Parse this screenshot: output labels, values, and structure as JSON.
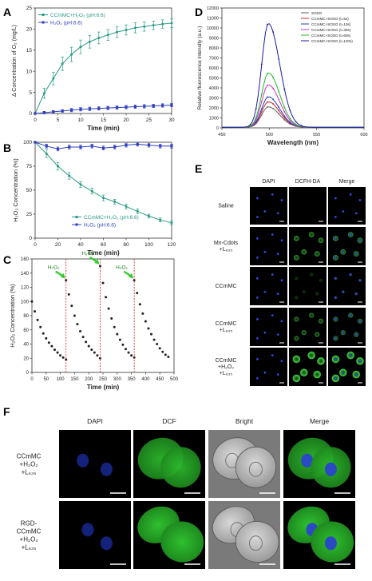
{
  "panel_letters": {
    "a": "A",
    "b": "B",
    "c": "C",
    "d": "D",
    "e": "E",
    "f": "F"
  },
  "colors": {
    "teal": "#2a9a86",
    "blue": "#2f3fbf",
    "black": "#222222",
    "red": "#d32020",
    "green_arrow": "#33cc33"
  },
  "chart_data": [
    {
      "panel": "A",
      "type": "line",
      "xlabel": "Time (min)",
      "ylabel": "Δ Concentration of O₂ (mg/L)",
      "xlim": [
        0,
        30
      ],
      "ylim": [
        0,
        25
      ],
      "xticks": [
        0,
        5,
        10,
        15,
        20,
        25,
        30
      ],
      "yticks": [
        0,
        5,
        10,
        15,
        20,
        25
      ],
      "legend": "top-left",
      "series": [
        {
          "name": "CCmMC+H₂O₂ (pH:6.6)",
          "color": "#2a9a86",
          "x": [
            0,
            2,
            4,
            6,
            8,
            10,
            12,
            14,
            16,
            18,
            20,
            22,
            24,
            26,
            28,
            30
          ],
          "y": [
            0,
            4.8,
            8.3,
            11.8,
            14.0,
            15.8,
            17.0,
            17.9,
            18.6,
            19.3,
            19.8,
            20.3,
            20.6,
            20.9,
            21.2,
            21.4
          ],
          "err": [
            0,
            1.2,
            1.5,
            1.6,
            1.7,
            1.6,
            1.5,
            1.4,
            1.3,
            1.3,
            1.2,
            1.2,
            1.1,
            1.0,
            1.0,
            1.0
          ]
        },
        {
          "name": "H₂O₂ (pH:6.6)",
          "color": "#2f3fbf",
          "x": [
            0,
            2,
            4,
            6,
            8,
            10,
            12,
            14,
            16,
            18,
            20,
            22,
            24,
            26,
            28,
            30
          ],
          "y": [
            0,
            0.2,
            0.4,
            0.6,
            0.8,
            1.0,
            1.1,
            1.2,
            1.3,
            1.4,
            1.5,
            1.6,
            1.7,
            1.8,
            1.9,
            2.0
          ],
          "err": [
            0,
            0.3,
            0.3,
            0.3,
            0.4,
            0.4,
            0.4,
            0.4,
            0.4,
            0.4,
            0.4,
            0.4,
            0.4,
            0.4,
            0.4,
            0.4
          ]
        }
      ]
    },
    {
      "panel": "D",
      "type": "line",
      "xlabel": "Wavelength (nm)",
      "ylabel": "Relative fluorescence intensity (a.u.)",
      "xlim": [
        450,
        600
      ],
      "ylim": [
        0,
        12000
      ],
      "xticks": [
        450,
        500,
        550,
        600
      ],
      "yticks": [
        0,
        1000,
        2000,
        3000,
        4000,
        5000,
        6000,
        7000,
        8000,
        9000,
        10000,
        11000,
        12000
      ],
      "legend": "top-right",
      "peak_nm": 499,
      "series": [
        {
          "name": "SOSG",
          "color": "#666666",
          "peak": 2050
        },
        {
          "name": "CCmMC+SOSG (t=5s)",
          "color": "#d62728",
          "peak": 2550
        },
        {
          "name": "CCmMC+SOSG (t=10s)",
          "color": "#1f3fbf",
          "peak": 3050
        },
        {
          "name": "CCmMC+SOSG (t=30s)",
          "color": "#cc33cc",
          "peak": 4250
        },
        {
          "name": "CCmMC+SOSG (t=60s)",
          "color": "#22bb22",
          "peak": 5450
        },
        {
          "name": "CCmMC+SOSG (t=120s)",
          "color": "#1a1aa0",
          "peak": 10400
        }
      ]
    },
    {
      "panel": "B",
      "type": "line",
      "xlabel": "Time (min)",
      "ylabel": "H₂O₂ Concentration (%)",
      "xlim": [
        0,
        120
      ],
      "ylim": [
        0,
        100
      ],
      "xticks": [
        0,
        20,
        40,
        60,
        80,
        100,
        120
      ],
      "yticks": [
        0,
        25,
        50,
        75,
        100
      ],
      "legend": "bottom-left",
      "series": [
        {
          "name": "CCmMC+H₂O₂ (pH:6.6)",
          "color": "#2a9a86",
          "x": [
            0,
            10,
            20,
            30,
            40,
            50,
            60,
            70,
            80,
            90,
            100,
            110,
            120
          ],
          "y": [
            100,
            88,
            75,
            65,
            56,
            49,
            42,
            38,
            33,
            28,
            23,
            19,
            16
          ],
          "err": [
            0,
            4,
            4,
            3.5,
            3,
            3,
            3,
            2.5,
            2.5,
            2.5,
            2,
            2,
            2
          ]
        },
        {
          "name": "H₂O₂ (pH:6.6)",
          "color": "#2f3fbf",
          "x": [
            0,
            10,
            20,
            30,
            40,
            50,
            60,
            70,
            80,
            90,
            100,
            110,
            120
          ],
          "y": [
            100,
            96,
            93,
            95,
            95,
            96,
            94,
            95,
            97,
            98,
            97,
            96,
            96
          ],
          "err": [
            0,
            2,
            2,
            2,
            2,
            2,
            2,
            2,
            2,
            2,
            2,
            2,
            2
          ]
        }
      ]
    },
    {
      "panel": "C",
      "type": "scatter",
      "xlabel": "Time (min)",
      "ylabel": "H₂O₂ Concentration (%)",
      "xlim": [
        0,
        500
      ],
      "ylim": [
        0,
        160
      ],
      "xticks": [
        0,
        50,
        100,
        150,
        200,
        250,
        300,
        350,
        400,
        450,
        500
      ],
      "yticks": [
        0,
        20,
        40,
        60,
        80,
        100,
        120,
        140,
        160
      ],
      "additions": [
        {
          "x": 120,
          "label": "H₂O₂"
        },
        {
          "x": 240,
          "label": "H₂O₂"
        },
        {
          "x": 360,
          "label": "H₂O₂"
        }
      ],
      "cycles": [
        {
          "start": 0,
          "y": [
            100,
            86,
            74,
            64,
            55,
            48,
            42,
            37,
            32,
            28,
            24,
            21,
            18
          ]
        },
        {
          "start": 120,
          "y": [
            130,
            110,
            94,
            80,
            68,
            58,
            50,
            43,
            37,
            32,
            28,
            24,
            20
          ]
        },
        {
          "start": 240,
          "y": [
            150,
            126,
            106,
            90,
            76,
            64,
            54,
            46,
            39,
            33,
            28,
            24,
            21
          ]
        },
        {
          "start": 360,
          "y": [
            130,
            112,
            96,
            83,
            72,
            62,
            54,
            46,
            40,
            34,
            29,
            25,
            22
          ]
        }
      ]
    }
  ],
  "panel_e": {
    "columns": [
      "DAPI",
      "DCFH-DA",
      "Merge"
    ],
    "rows": [
      {
        "label": "Saline",
        "dcf": 0.0
      },
      {
        "label": "Mn-Cdots\n+L₆₃₅",
        "dcf": 0.55
      },
      {
        "label": "CCmMC",
        "dcf": 0.08
      },
      {
        "label": "CCmMC\n+L₆₃₅",
        "dcf": 0.45
      },
      {
        "label": "CCmMC\n+H₂O₂\n+L₆₃₅",
        "dcf": 1.0
      }
    ]
  },
  "panel_f": {
    "columns": [
      "DAPI",
      "DCF",
      "Bright",
      "Merge"
    ],
    "rows": [
      {
        "label": "CCmMC\n+H₂O₂\n+L₆₃₅"
      },
      {
        "label": "RGD-\nCCmMC\n+H₂O₂\n+L₆₃₅"
      }
    ]
  }
}
